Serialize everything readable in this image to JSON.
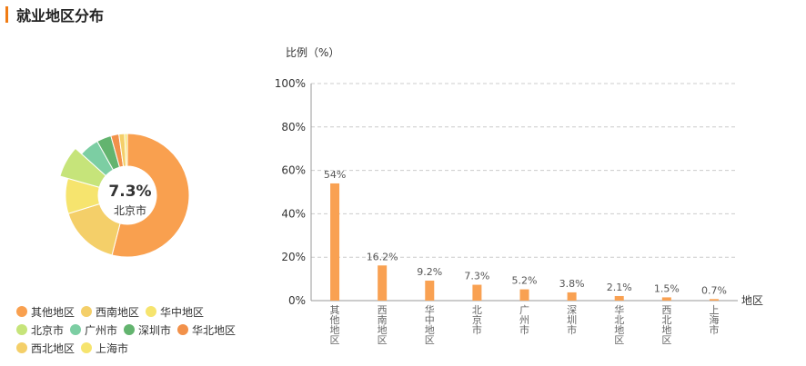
{
  "header": {
    "title": "就业地区分布"
  },
  "donut": {
    "highlight_value": "7.3%",
    "highlight_label": "北京市",
    "highlight_index": 3
  },
  "chart_data": {
    "type": "bar",
    "ylabel": "比例（%）",
    "xlabel": "地区",
    "ylim": [
      0,
      100
    ],
    "yticks": [
      "0%",
      "20%",
      "40%",
      "60%",
      "80%",
      "100%"
    ],
    "grid": true,
    "categories": [
      "其他地区",
      "西南地区",
      "华中地区",
      "北京市",
      "广州市",
      "深圳市",
      "华北地区",
      "西北地区",
      "上海市"
    ],
    "values": [
      54,
      16.2,
      9.2,
      7.3,
      5.2,
      3.8,
      2.1,
      1.5,
      0.7
    ],
    "data_labels": [
      "54%",
      "16.2%",
      "9.2%",
      "7.3%",
      "5.2%",
      "3.8%",
      "2.1%",
      "1.5%",
      "0.7%"
    ],
    "bar_color": "#f9a152",
    "pie_colors": [
      "#f9a04f",
      "#f4cf69",
      "#f6e46e",
      "#c6e47a",
      "#7ccea3",
      "#63b46f",
      "#f2914a",
      "#f4cf69",
      "#f6e46e"
    ]
  },
  "legend": {
    "rows": [
      [
        {
          "label": "其他地区",
          "color": "#f9a04f"
        },
        {
          "label": "西南地区",
          "color": "#f4cf69"
        },
        {
          "label": "华中地区",
          "color": "#f6e46e"
        }
      ],
      [
        {
          "label": "北京市",
          "color": "#c6e47a"
        },
        {
          "label": "广州市",
          "color": "#7ccea3"
        },
        {
          "label": "深圳市",
          "color": "#63b46f"
        },
        {
          "label": "华北地区",
          "color": "#f2914a"
        }
      ],
      [
        {
          "label": "西北地区",
          "color": "#f4cf69"
        },
        {
          "label": "上海市",
          "color": "#f6e46e"
        }
      ]
    ]
  }
}
